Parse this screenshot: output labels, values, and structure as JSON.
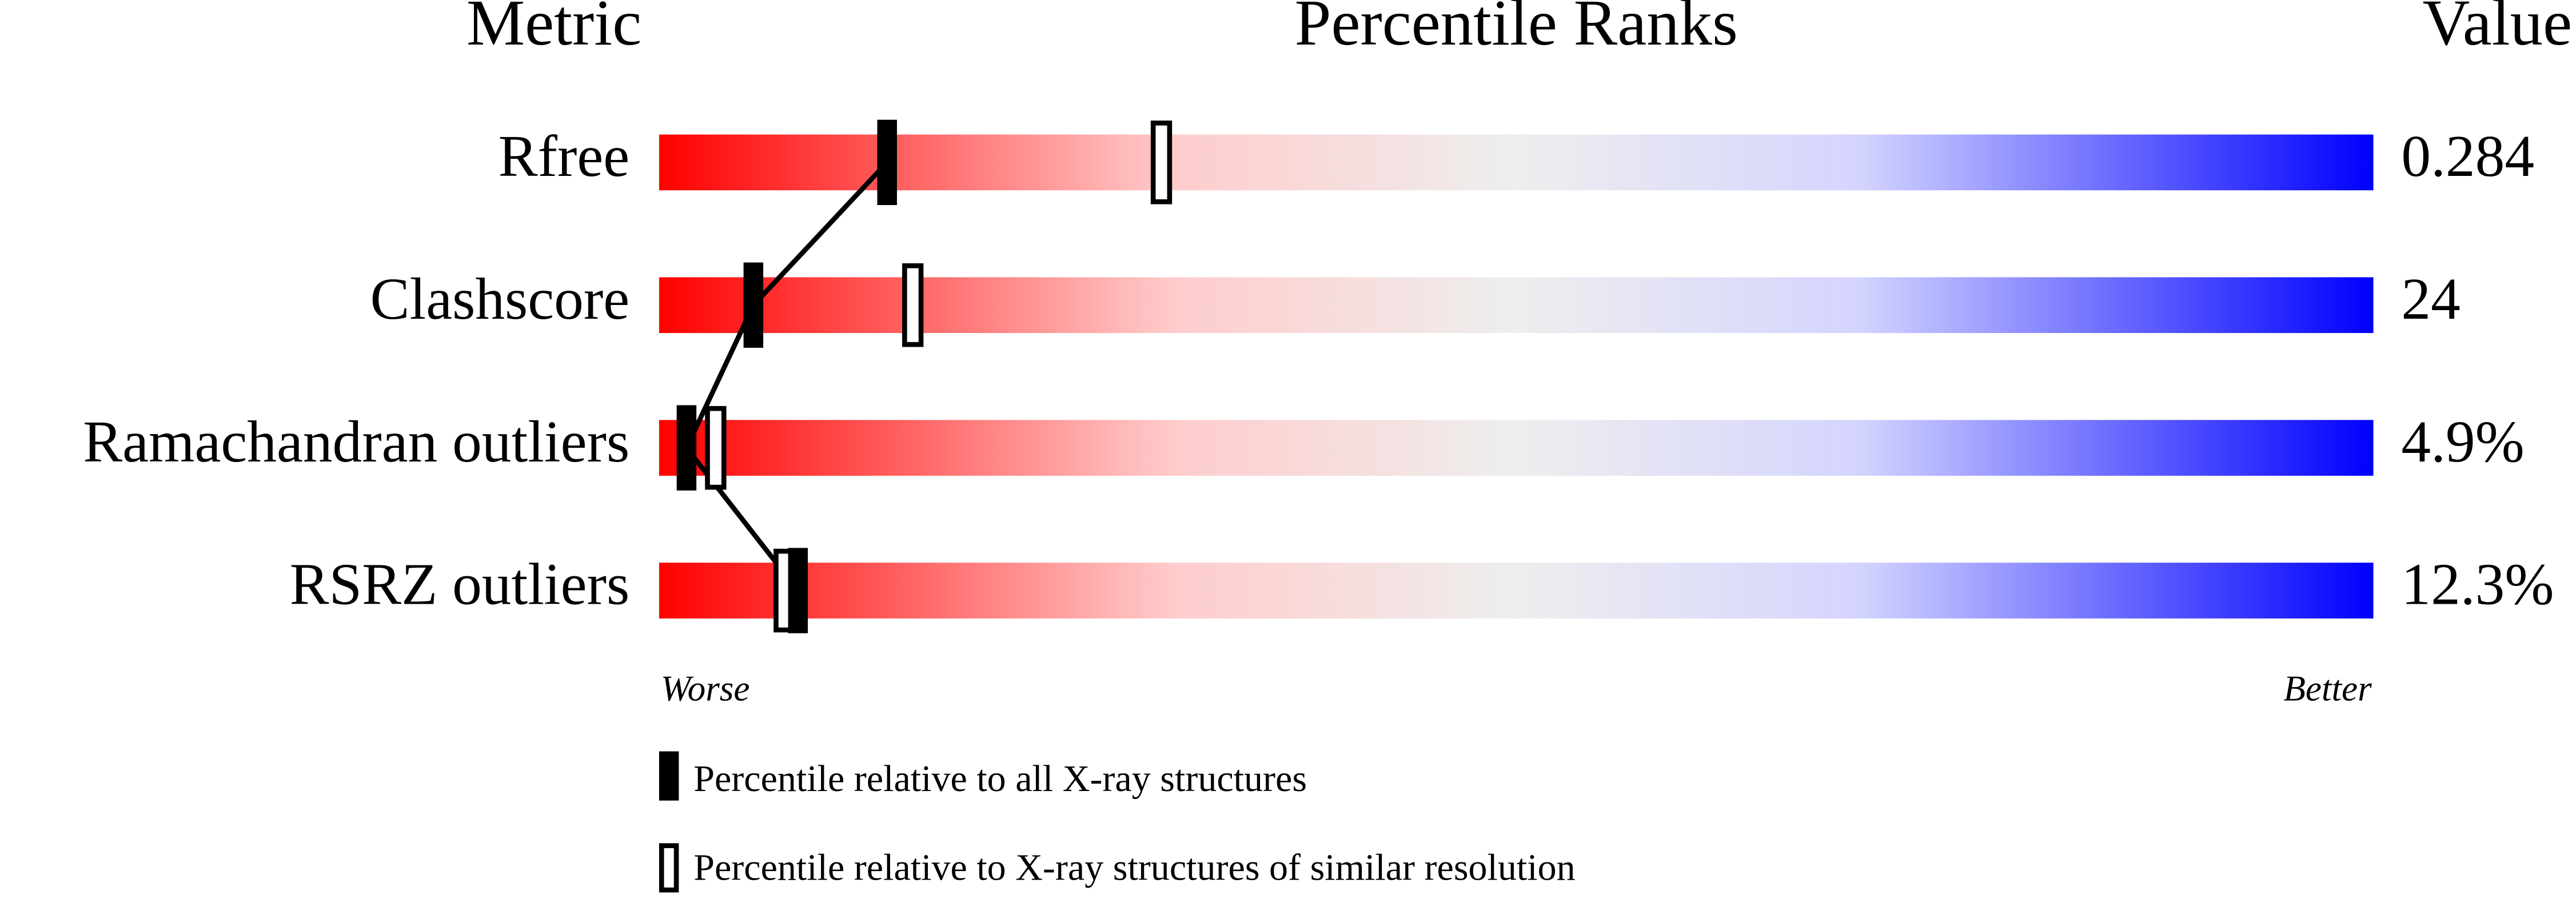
{
  "chart_data": {
    "type": "percentile-slider",
    "headers": {
      "metric": "Metric",
      "ranks": "Percentile Ranks",
      "value": "Value"
    },
    "categories": [
      "Rfree",
      "Clashscore",
      "Ramachandran outliers",
      "RSRZ outliers"
    ],
    "metric_values": [
      "0.284",
      "24",
      "4.9%",
      "12.3%"
    ],
    "series": [
      {
        "name": "Percentile relative to all X-ray structures",
        "color": "#000000",
        "values": [
          13.3,
          5.5,
          1.6,
          8.1
        ]
      },
      {
        "name": "Percentile relative to X-ray structures of similar resolution",
        "color": "#000000",
        "values": [
          29.3,
          14.8,
          3.3,
          7.3
        ]
      }
    ],
    "xlim": [
      0,
      100
    ],
    "worse": "Worse",
    "better": "Better"
  }
}
